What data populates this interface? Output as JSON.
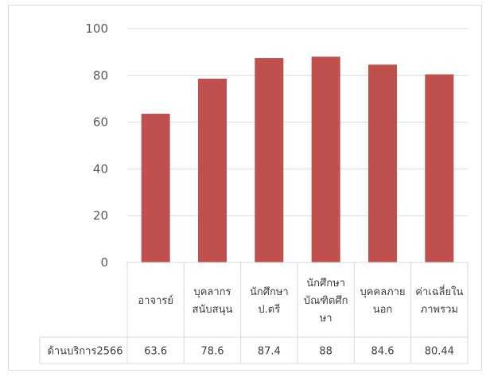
{
  "chart_data": {
    "type": "bar",
    "title": "",
    "xlabel": "",
    "ylabel": "",
    "ylim": [
      0,
      100
    ],
    "yticks": [
      0,
      20,
      40,
      60,
      80,
      100
    ],
    "grid": true,
    "legend": "none",
    "categories": [
      [
        "อาจารย์"
      ],
      [
        "บุคลากร",
        "สนับสนุน"
      ],
      [
        "นักศึกษา",
        "ป.ตรี"
      ],
      [
        "นักศึกษา",
        "บัณฑิตศึก",
        "ษา"
      ],
      [
        "บุคคลภาย",
        "นอก"
      ],
      [
        "ค่าเฉลี่ยใน",
        "ภาพรวม"
      ]
    ],
    "series": [
      {
        "name": "ด้านบริการ2566",
        "values": [
          63.6,
          78.6,
          87.4,
          88,
          84.6,
          80.44
        ],
        "labels": [
          "63.6",
          "78.6",
          "87.4",
          "88",
          "84.6",
          "80.44"
        ],
        "color": "#c0504d"
      }
    ],
    "data_table": true
  }
}
